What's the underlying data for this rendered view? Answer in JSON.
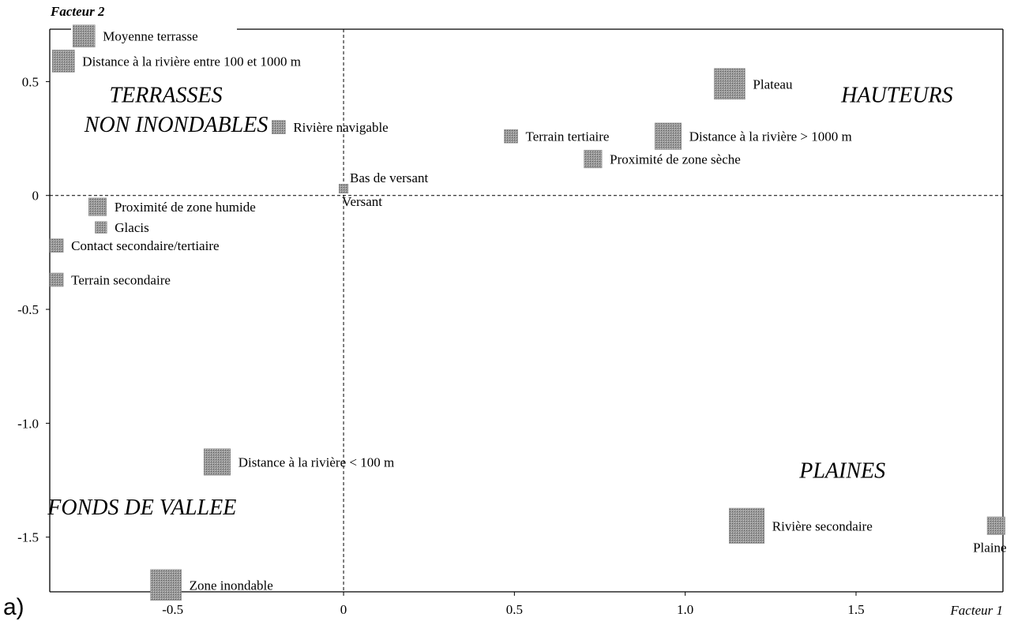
{
  "panel_label": "a)",
  "chart_data": {
    "type": "scatter",
    "xlabel": "Facteur 1",
    "ylabel": "Facteur 2",
    "xlim": [
      -0.86,
      1.93
    ],
    "ylim": [
      -1.74,
      0.73
    ],
    "xticks": [
      {
        "value": -0.5,
        "label": "-0.5"
      },
      {
        "value": 0,
        "label": "0"
      },
      {
        "value": 0.5,
        "label": "0.5"
      },
      {
        "value": 1.0,
        "label": "1.0"
      },
      {
        "value": 1.5,
        "label": "1.5"
      }
    ],
    "yticks": [
      {
        "value": 0.5,
        "label": "0.5"
      },
      {
        "value": 0,
        "label": "0"
      },
      {
        "value": -0.5,
        "label": "-0.5"
      },
      {
        "value": -1.0,
        "label": "-1.0"
      },
      {
        "value": -1.5,
        "label": "-1.5"
      }
    ],
    "reference_lines": {
      "x": 0,
      "y": 0,
      "style": "dashed"
    },
    "marker_color": "#8a8a8a",
    "points": [
      {
        "label": "Moyenne terrasse",
        "x": -0.76,
        "y": 0.7,
        "weight": 2,
        "label_side": "right"
      },
      {
        "label": "Distance à la rivière entre 100 et 1000 m",
        "x": -0.82,
        "y": 0.59,
        "weight": 2,
        "label_side": "right"
      },
      {
        "label": "Rivière navigable",
        "x": -0.19,
        "y": 0.3,
        "weight": 1,
        "label_side": "right"
      },
      {
        "label": "Bas de versant",
        "x": 0.0,
        "y": 0.03,
        "weight": 0.5,
        "label_side": "right-above"
      },
      {
        "label": "Versant",
        "x": 0.0,
        "y": 0.03,
        "weight": 0,
        "label_side": "right-below"
      },
      {
        "label": "Proximité de zone humide",
        "x": -0.72,
        "y": -0.05,
        "weight": 1.5,
        "label_side": "right"
      },
      {
        "label": "Glacis",
        "x": -0.71,
        "y": -0.14,
        "weight": 0.8,
        "label_side": "right"
      },
      {
        "label": "Contact secondaire/tertiaire",
        "x": -0.84,
        "y": -0.22,
        "weight": 1,
        "label_side": "right"
      },
      {
        "label": "Terrain secondaire",
        "x": -0.84,
        "y": -0.37,
        "weight": 1,
        "label_side": "right"
      },
      {
        "label": "Terrain tertiaire",
        "x": 0.49,
        "y": 0.26,
        "weight": 1,
        "label_side": "right"
      },
      {
        "label": "Plateau",
        "x": 1.13,
        "y": 0.49,
        "weight": 3,
        "label_side": "right"
      },
      {
        "label": "Distance à la rivière > 1000 m",
        "x": 0.95,
        "y": 0.26,
        "weight": 2.5,
        "label_side": "right"
      },
      {
        "label": "Proximité de zone sèche",
        "x": 0.73,
        "y": 0.16,
        "weight": 1.5,
        "label_side": "right"
      },
      {
        "label": "Distance à la rivière < 100 m",
        "x": -0.37,
        "y": -1.17,
        "weight": 2.5,
        "label_side": "right"
      },
      {
        "label": "Zone inondable",
        "x": -0.52,
        "y": -1.71,
        "weight": 3,
        "label_side": "right"
      },
      {
        "label": "Rivière secondaire",
        "x": 1.18,
        "y": -1.45,
        "weight": 3.5,
        "label_side": "right"
      },
      {
        "label": "Plaine",
        "x": 1.91,
        "y": -1.45,
        "weight": 1.5,
        "label_side": "below-left"
      }
    ],
    "annotations": [
      {
        "text": "TERRASSES",
        "x": -0.52,
        "y": 0.41
      },
      {
        "text": "NON INONDABLES",
        "x": -0.49,
        "y": 0.28
      },
      {
        "text": "HAUTEURS",
        "x": 1.62,
        "y": 0.41
      },
      {
        "text": "PLAINES",
        "x": 1.46,
        "y": -1.24
      },
      {
        "text": "FONDS DE VALLEE",
        "x": -0.59,
        "y": -1.4
      }
    ]
  }
}
